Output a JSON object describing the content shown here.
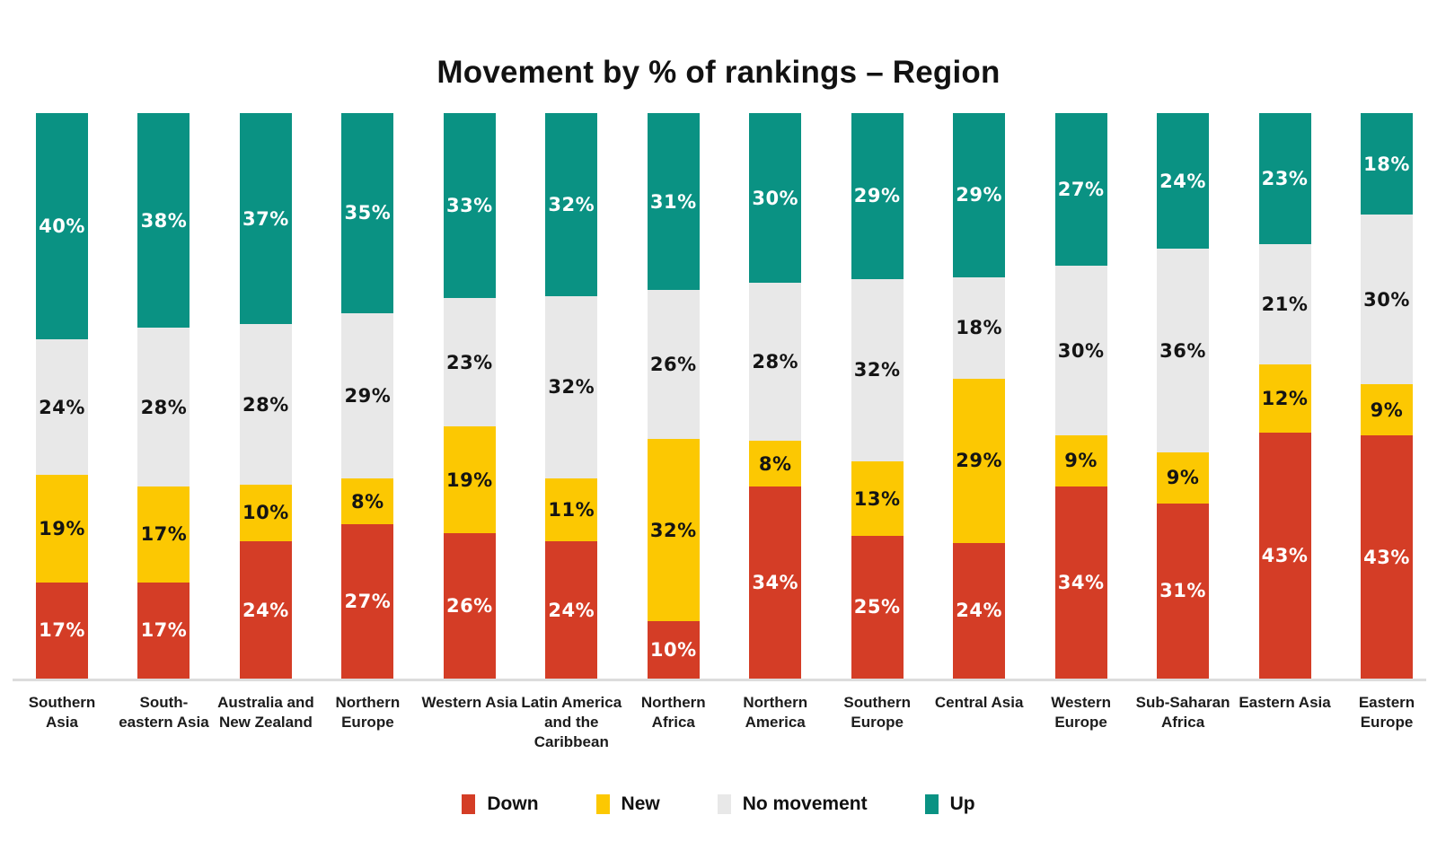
{
  "header": {
    "title": "Movement by % of rankings – Region"
  },
  "chart_data": {
    "type": "bar",
    "stacked": true,
    "orientation": "vertical",
    "unit": "%",
    "title": "Movement by % of rankings – Region",
    "categories": [
      "Southern Asia",
      "South-eastern Asia",
      "Australia and New Zealand",
      "Northern Europe",
      "Western Asia",
      "Latin America and the Caribbean",
      "Northern Africa",
      "Northern America",
      "Southern Europe",
      "Central Asia",
      "Western Europe",
      "Sub-Saharan Africa",
      "Eastern Asia",
      "Eastern Europe"
    ],
    "series": [
      {
        "name": "Down",
        "color": "#d43d26",
        "label_color": "#ffffff",
        "values": [
          17,
          17,
          24,
          27,
          26,
          24,
          10,
          34,
          25,
          24,
          34,
          31,
          43,
          43
        ]
      },
      {
        "name": "New",
        "color": "#fcc802",
        "label_color": "#141414",
        "values": [
          19,
          17,
          10,
          8,
          19,
          11,
          32,
          8,
          13,
          29,
          9,
          9,
          12,
          9
        ]
      },
      {
        "name": "No movement",
        "color": "#e8e8e8",
        "label_color": "#141414",
        "values": [
          24,
          28,
          28,
          29,
          23,
          32,
          26,
          28,
          32,
          18,
          30,
          36,
          21,
          30
        ]
      },
      {
        "name": "Up",
        "color": "#0a9283",
        "label_color": "#ffffff",
        "values": [
          40,
          38,
          37,
          35,
          33,
          32,
          31,
          30,
          29,
          29,
          27,
          24,
          23,
          18
        ]
      }
    ],
    "value_suffix": "%",
    "ylim": [
      0,
      100
    ],
    "grid": false,
    "axis_line_color": "#dcdcdc",
    "legend_position": "bottom"
  }
}
